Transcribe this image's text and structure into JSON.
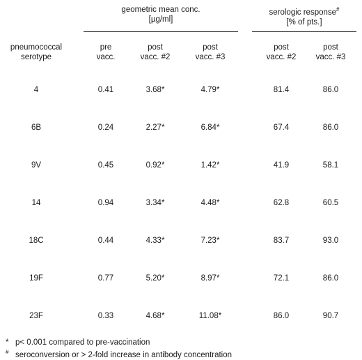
{
  "header": {
    "group_gmc": {
      "line1": "geometric mean conc.",
      "line2": "[µg/ml]"
    },
    "group_sero": {
      "line1": "serologic response",
      "line1_sup": "#",
      "line2": "[% of pts.]"
    },
    "columns": {
      "serotype": {
        "line1": "pneumococcal",
        "line2": "serotype"
      },
      "pre": {
        "line1": "pre",
        "line2": "vacc."
      },
      "post2": {
        "line1": "post",
        "line2": "vacc. #2"
      },
      "post3": {
        "line1": "post",
        "line2": "vacc. #3"
      },
      "sero_post2": {
        "line1": "post",
        "line2": "vacc. #2"
      },
      "sero_post3": {
        "line1": "post",
        "line2": "vacc. #3"
      }
    }
  },
  "rows": [
    {
      "serotype": "4",
      "pre": "0.41",
      "post2": "3.68*",
      "post3": "4.79*",
      "sero_post2": "81.4",
      "sero_post3": "86.0"
    },
    {
      "serotype": "6B",
      "pre": "0.24",
      "post2": "2.27*",
      "post3": "6.84*",
      "sero_post2": "67.4",
      "sero_post3": "86.0"
    },
    {
      "serotype": "9V",
      "pre": "0.45",
      "post2": "0.92*",
      "post3": "1.42*",
      "sero_post2": "41.9",
      "sero_post3": "58.1"
    },
    {
      "serotype": "14",
      "pre": "0.94",
      "post2": "3.34*",
      "post3": "4.48*",
      "sero_post2": "62.8",
      "sero_post3": "60.5"
    },
    {
      "serotype": "18C",
      "pre": "0.44",
      "post2": "4.33*",
      "post3": "7.23*",
      "sero_post2": "83.7",
      "sero_post3": "93.0"
    },
    {
      "serotype": "19F",
      "pre": "0.77",
      "post2": "5.20*",
      "post3": "8.97*",
      "sero_post2": "72.1",
      "sero_post3": "86.0"
    },
    {
      "serotype": "23F",
      "pre": "0.33",
      "post2": "4.68*",
      "post3": "11.08*",
      "sero_post2": "86.0",
      "sero_post3": "90.7"
    }
  ],
  "footnotes": [
    {
      "mark": "*",
      "text": "p< 0.001 compared to pre-vaccination"
    },
    {
      "mark": "#",
      "text": "seroconversion or > 2-fold increase in antibody concentration"
    }
  ]
}
